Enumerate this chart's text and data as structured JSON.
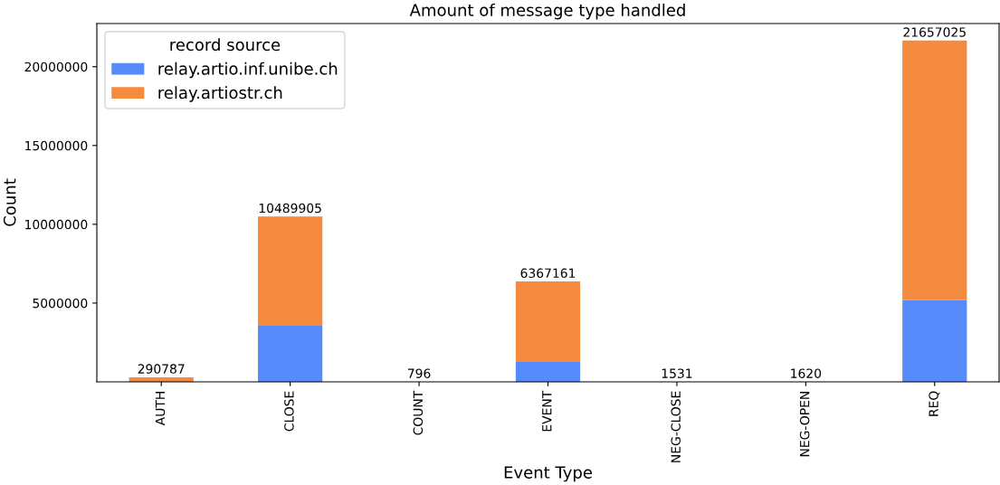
{
  "chart_data": {
    "type": "bar",
    "title": "Amount of message type handled",
    "xlabel": "Event Type",
    "ylabel": "Count",
    "legend_title": "record source",
    "categories": [
      "AUTH",
      "CLOSE",
      "COUNT",
      "EVENT",
      "NEG-CLOSE",
      "NEG-OPEN",
      "REQ"
    ],
    "series": [
      {
        "name": "relay.artio.inf.unibe.ch",
        "color": "#568bfc",
        "values": [
          0,
          3560000,
          0,
          1310000,
          0,
          0,
          5200000
        ]
      },
      {
        "name": "relay.artiostr.ch",
        "color": "#f58b3f",
        "values": [
          290787,
          6929905,
          796,
          5057161,
          1531,
          1620,
          16457025
        ]
      }
    ],
    "stacked": true,
    "totals": [
      "290787",
      "10489905",
      "796",
      "6367161",
      "1531",
      "1620",
      "21657025"
    ],
    "ylim": [
      0,
      22740000
    ],
    "yticks": [
      5000000,
      10000000,
      15000000,
      20000000
    ],
    "grid": false,
    "legend": "top left"
  }
}
